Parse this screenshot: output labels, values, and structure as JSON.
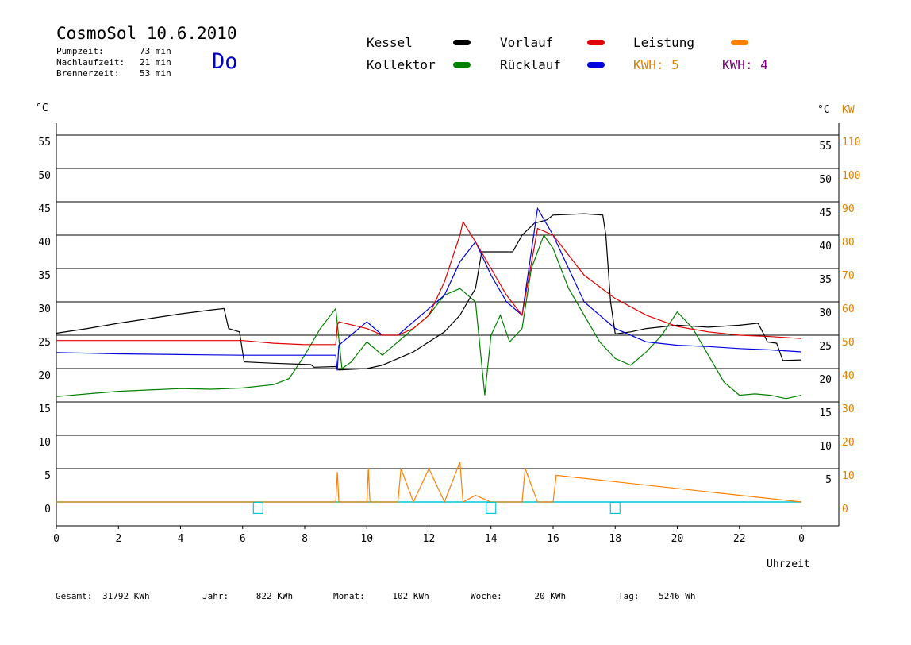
{
  "header": {
    "title": "CosmoSol 10.6.2010",
    "stats": [
      {
        "label": "Pumpzeit:",
        "value": "73 min"
      },
      {
        "label": "Nachlaufzeit:",
        "value": "21 min"
      },
      {
        "label": "Brennerzeit:",
        "value": "53 min"
      }
    ],
    "day": "Do"
  },
  "legend": {
    "items": [
      {
        "label": "Kessel",
        "color": "#000000"
      },
      {
        "label": "Kollektor",
        "color": "#008000"
      },
      {
        "label": "Vorlauf",
        "color": "#e00000"
      },
      {
        "label": "Rücklauf",
        "color": "#0000e0"
      },
      {
        "label": "Leistung",
        "color": "#ff8000"
      }
    ],
    "kwh": [
      {
        "text": "KWH: 5",
        "color": "#e08000"
      },
      {
        "text": "KWH: 4",
        "color": "#800080"
      }
    ]
  },
  "footer": [
    {
      "label": "Gesamt:",
      "value": "31792 KWh"
    },
    {
      "label": "Jahr:",
      "value": "822 KWh"
    },
    {
      "label": "Monat:",
      "value": "102 KWh"
    },
    {
      "label": "Woche:",
      "value": "20 KWh"
    },
    {
      "label": "Tag:",
      "value": "5246 Wh"
    }
  ],
  "chart_data": {
    "type": "line",
    "xlabel": "Uhrzeit",
    "ylabel_left": "°C",
    "ylabel_right": "°C",
    "ylabel_right2": "KW",
    "xlim": [
      0,
      24
    ],
    "ylim": [
      0,
      55
    ],
    "y2lim": [
      0,
      110
    ],
    "x_ticks": [
      "0",
      "2",
      "4",
      "6",
      "8",
      "10",
      "12",
      "14",
      "16",
      "18",
      "20",
      "22",
      "0"
    ],
    "y_ticks_left": [
      "0",
      "5",
      "10",
      "15",
      "20",
      "25",
      "30",
      "35",
      "40",
      "45",
      "50",
      "55"
    ],
    "y_ticks_right": [
      "5",
      "10",
      "15",
      "20",
      "25",
      "30",
      "35",
      "40",
      "45",
      "50",
      "55"
    ],
    "y_ticks_kw": [
      "0",
      "10",
      "20",
      "30",
      "40",
      "50",
      "60",
      "70",
      "80",
      "90",
      "100",
      "110"
    ],
    "grid": "horizontal",
    "series": [
      {
        "name": "Kessel",
        "color": "#000000",
        "x": [
          0,
          1,
          2,
          3,
          4,
          5,
          5.4,
          5.55,
          5.9,
          6.05,
          7,
          8.2,
          8.3,
          9,
          9.1,
          10,
          10.5,
          11,
          11.5,
          12,
          12.5,
          13,
          13.5,
          13.7,
          14,
          14.7,
          15,
          15.4,
          15.8,
          16,
          17,
          17.6,
          17.7,
          17.85,
          18,
          18.5,
          19,
          20,
          21,
          22,
          22.6,
          22.8,
          22.9,
          23.2,
          23.4,
          24
        ],
        "y": [
          25.3,
          26,
          26.8,
          27.5,
          28.2,
          28.8,
          29,
          26,
          25.5,
          21,
          20.8,
          20.6,
          20.2,
          20.3,
          19.8,
          20,
          20.5,
          21.5,
          22.5,
          24,
          25.5,
          28,
          32,
          37.5,
          37.5,
          37.5,
          40,
          41.8,
          42.3,
          43,
          43.2,
          43,
          40,
          30,
          25.2,
          25.5,
          26,
          26.5,
          26.2,
          26.5,
          26.8,
          25,
          24,
          23.8,
          21.2,
          21.3
        ]
      },
      {
        "name": "Vorlauf",
        "color": "#e00000",
        "x": [
          0,
          2,
          4,
          6,
          7,
          8,
          9,
          9.05,
          9.1,
          10,
          10.5,
          11,
          11.5,
          12,
          12.5,
          13,
          13.1,
          13.5,
          14,
          14.5,
          15,
          15.5,
          16,
          16.5,
          17,
          18,
          19,
          20,
          21,
          22,
          23,
          24
        ],
        "y": [
          24.2,
          24.2,
          24.2,
          24.2,
          23.8,
          23.6,
          23.6,
          26.5,
          27,
          26,
          25,
          25,
          26,
          28,
          33,
          40,
          42,
          39,
          35,
          31,
          28,
          41,
          40,
          37,
          34,
          30.5,
          28,
          26.3,
          25.5,
          25,
          24.8,
          24.5
        ]
      },
      {
        "name": "Rücklauf",
        "color": "#0000e0",
        "x": [
          0,
          2,
          4,
          6,
          7,
          8,
          9,
          9.05,
          9.1,
          10,
          10.5,
          11,
          11.5,
          12,
          12.5,
          13,
          13.5,
          14,
          14.5,
          15,
          15.5,
          16,
          16.5,
          17,
          18,
          19,
          20,
          21,
          22,
          23,
          24
        ],
        "y": [
          22.4,
          22.2,
          22.1,
          22.0,
          22.0,
          22.0,
          22.0,
          19.7,
          23.5,
          27,
          25,
          25,
          27,
          29,
          31,
          36,
          39,
          34,
          30,
          28,
          44,
          40,
          35,
          30,
          26,
          24,
          23.5,
          23.3,
          23,
          22.8,
          22.5
        ]
      },
      {
        "name": "Kollektor",
        "color": "#008000",
        "x": [
          0,
          1,
          2,
          3,
          4,
          5,
          6,
          7,
          7.5,
          8,
          8.5,
          9,
          9.2,
          9.5,
          10,
          10.5,
          11,
          11.5,
          12,
          12.5,
          13,
          13.5,
          13.8,
          14,
          14.3,
          14.6,
          15,
          15.3,
          15.7,
          16,
          16.5,
          17,
          17.5,
          18,
          18.5,
          19,
          19.5,
          20,
          20.5,
          21,
          21.5,
          22,
          22.5,
          23,
          23.5,
          24
        ],
        "y": [
          15.8,
          16.2,
          16.6,
          16.8,
          17,
          16.9,
          17.1,
          17.6,
          18.5,
          22,
          26,
          29,
          20,
          21,
          24,
          22,
          24,
          26,
          28,
          31,
          32,
          30,
          16,
          25,
          28,
          24,
          26,
          35,
          40,
          38,
          32,
          28,
          24,
          21.5,
          20.5,
          22.5,
          25,
          28.5,
          26,
          22,
          18,
          16,
          16.2,
          16,
          15.5,
          16
        ]
      },
      {
        "name": "Leistung",
        "color": "#ff8000",
        "x": [
          0,
          9,
          9.05,
          9.1,
          10,
          10.05,
          10.1,
          11,
          11.1,
          11.5,
          12,
          12.5,
          13,
          13.1,
          13.5,
          14,
          15,
          15.1,
          15.5,
          16,
          16.1,
          24
        ],
        "y": [
          0,
          0,
          4.5,
          0,
          0,
          5,
          0,
          0,
          5,
          0,
          5,
          0,
          6,
          0,
          1,
          0,
          0,
          5,
          0,
          0,
          4,
          0
        ]
      }
    ],
    "markers": {
      "shape": "square",
      "color": "#00c8d8",
      "x": [
        6.5,
        14,
        18
      ],
      "y": [
        -1,
        -1,
        -1
      ]
    }
  }
}
